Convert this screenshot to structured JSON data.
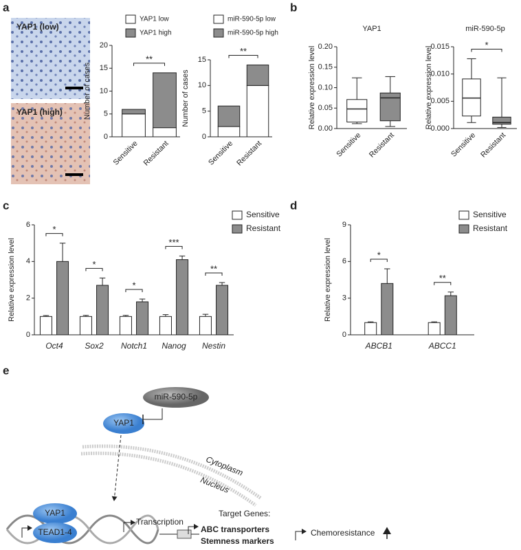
{
  "panels": [
    "a",
    "b",
    "c",
    "d",
    "e"
  ],
  "images": [
    {
      "label": "YAP1 (low)"
    },
    {
      "label": "YAP1 (high)"
    }
  ],
  "chart_data": [
    {
      "type": "stacked_bar",
      "ylabel": "Number of cases",
      "categories": [
        "Sensitive",
        "Resistant"
      ],
      "series": [
        {
          "name": "YAP1 low",
          "color": "#ffffff",
          "values": [
            5,
            2
          ]
        },
        {
          "name": "YAP1 high",
          "color": "#8c8c8c",
          "values": [
            1,
            12
          ]
        }
      ],
      "ylim": [
        0,
        20
      ],
      "yticks": [
        0,
        5,
        10,
        15,
        20
      ],
      "annotations": [
        "**"
      ]
    },
    {
      "type": "stacked_bar",
      "ylabel": "Number of cases",
      "categories": [
        "Sensitive",
        "Resistant"
      ],
      "series": [
        {
          "name": "miR-590-5p low",
          "color": "#ffffff",
          "values": [
            2,
            10
          ]
        },
        {
          "name": "miR-590-5p high",
          "color": "#8c8c8c",
          "values": [
            4,
            4
          ]
        }
      ],
      "ylim": [
        0,
        15
      ],
      "yticks": [
        0,
        5,
        10,
        15
      ],
      "annotations": [
        "**"
      ]
    },
    {
      "type": "box",
      "title": "YAP1",
      "ylabel": "Relative expression level",
      "categories": [
        "Sensitive",
        "Resistant"
      ],
      "boxes": [
        {
          "color": "#ffffff",
          "min": 0.012,
          "q1": 0.016,
          "median": 0.048,
          "q3": 0.071,
          "max": 0.124
        },
        {
          "color": "#8c8c8c",
          "min": 0.005,
          "q1": 0.019,
          "median": 0.075,
          "q3": 0.087,
          "max": 0.127
        }
      ],
      "ylim": [
        0,
        0.2
      ],
      "yticks": [
        {
          "value": 0,
          "label": "0.00"
        },
        {
          "value": 0.05,
          "label": "0.05"
        },
        {
          "value": 0.1,
          "label": "0.10"
        },
        {
          "value": 0.15,
          "label": "0.15"
        },
        {
          "value": 0.2,
          "label": "0.20"
        }
      ],
      "annotations": []
    },
    {
      "type": "box",
      "title": "miR-590-5p",
      "ylabel": "Relative expression level",
      "categories": [
        "Sensitive",
        "Resistant"
      ],
      "boxes": [
        {
          "color": "#ffffff",
          "min": 0.0011,
          "q1": 0.0023,
          "median": 0.0056,
          "q3": 0.0091,
          "max": 0.0128
        },
        {
          "color": "#8c8c8c",
          "min": 0.0002,
          "q1": 0.0008,
          "median": 0.0011,
          "q3": 0.0021,
          "max": 0.0093
        }
      ],
      "ylim": [
        0,
        0.015
      ],
      "yticks": [
        {
          "value": 0,
          "label": "0.000"
        },
        {
          "value": 0.005,
          "label": "0.005"
        },
        {
          "value": 0.01,
          "label": "0.010"
        },
        {
          "value": 0.015,
          "label": "0.015"
        }
      ],
      "annotations": [
        "*"
      ]
    },
    {
      "type": "grouped_bar",
      "ylabel": "Relative expression level",
      "categories": [
        "Oct4",
        "Sox2",
        "Notch1",
        "Nanog",
        "Nestin"
      ],
      "series": [
        {
          "name": "Sensitive",
          "color": "#ffffff",
          "values": [
            1,
            1,
            1,
            1,
            1
          ],
          "errors": [
            0.05,
            0.06,
            0.06,
            0.1,
            0.12
          ]
        },
        {
          "name": "Resistant",
          "color": "#8c8c8c",
          "values": [
            4.0,
            2.7,
            1.8,
            4.1,
            2.7
          ],
          "errors": [
            1.0,
            0.4,
            0.15,
            0.2,
            0.15
          ]
        }
      ],
      "ylim": [
        0,
        6
      ],
      "yticks": [
        0,
        2,
        4,
        6
      ],
      "annotations": [
        "*",
        "*",
        "*",
        "***",
        "**"
      ]
    },
    {
      "type": "grouped_bar",
      "ylabel": "Relative expression level",
      "categories": [
        "ABCB1",
        "ABCC1"
      ],
      "series": [
        {
          "name": "Sensitive",
          "color": "#ffffff",
          "values": [
            1,
            1
          ],
          "errors": [
            0.06,
            0.06
          ]
        },
        {
          "name": "Resistant",
          "color": "#8c8c8c",
          "values": [
            4.2,
            3.2
          ],
          "errors": [
            1.2,
            0.3
          ]
        }
      ],
      "ylim": [
        0,
        9
      ],
      "yticks": [
        0,
        3,
        6,
        9
      ],
      "annotations": [
        "*",
        "**"
      ]
    }
  ],
  "diagram": {
    "inhibitor": "miR-590-5p",
    "cytoplasm_protein": "YAP1",
    "cytoplasm": "Cytoplasm",
    "nucleus": "Nucleus",
    "nuclear_protein": "YAP1",
    "partner": "TEAD1-4",
    "transcription": "Transcription",
    "target_genes": "Target Genes:",
    "gene_groups": [
      "ABC transporters",
      "Stemness markers"
    ],
    "outcome": "Chemoresistance"
  }
}
